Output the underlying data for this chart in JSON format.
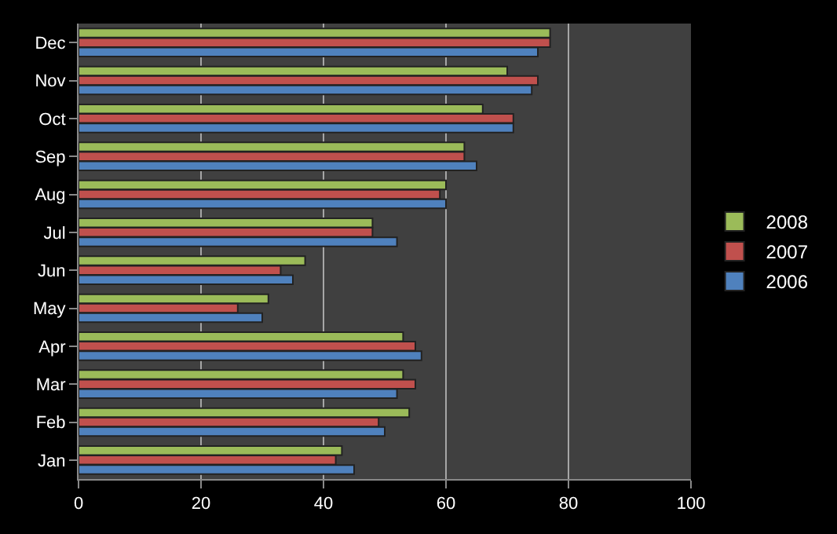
{
  "chart_data": {
    "type": "bar",
    "orientation": "horizontal",
    "categories": [
      "Dec",
      "Nov",
      "Oct",
      "Sep",
      "Aug",
      "Jul",
      "Jun",
      "May",
      "Apr",
      "Mar",
      "Feb",
      "Jan"
    ],
    "series": [
      {
        "name": "2008",
        "color": "#9bbb59",
        "values": [
          77,
          70,
          66,
          63,
          60,
          48,
          37,
          31,
          53,
          53,
          54,
          43
        ]
      },
      {
        "name": "2007",
        "color": "#c0504d",
        "values": [
          77,
          75,
          71,
          63,
          59,
          48,
          33,
          26,
          55,
          55,
          49,
          42
        ]
      },
      {
        "name": "2006",
        "color": "#4f81bd",
        "values": [
          75,
          74,
          71,
          65,
          60,
          52,
          35,
          30,
          56,
          52,
          50,
          45
        ]
      }
    ],
    "xlim": [
      0,
      100
    ],
    "xticks": [
      0,
      20,
      40,
      60,
      80,
      100
    ],
    "grid": "x",
    "legend": "right"
  }
}
